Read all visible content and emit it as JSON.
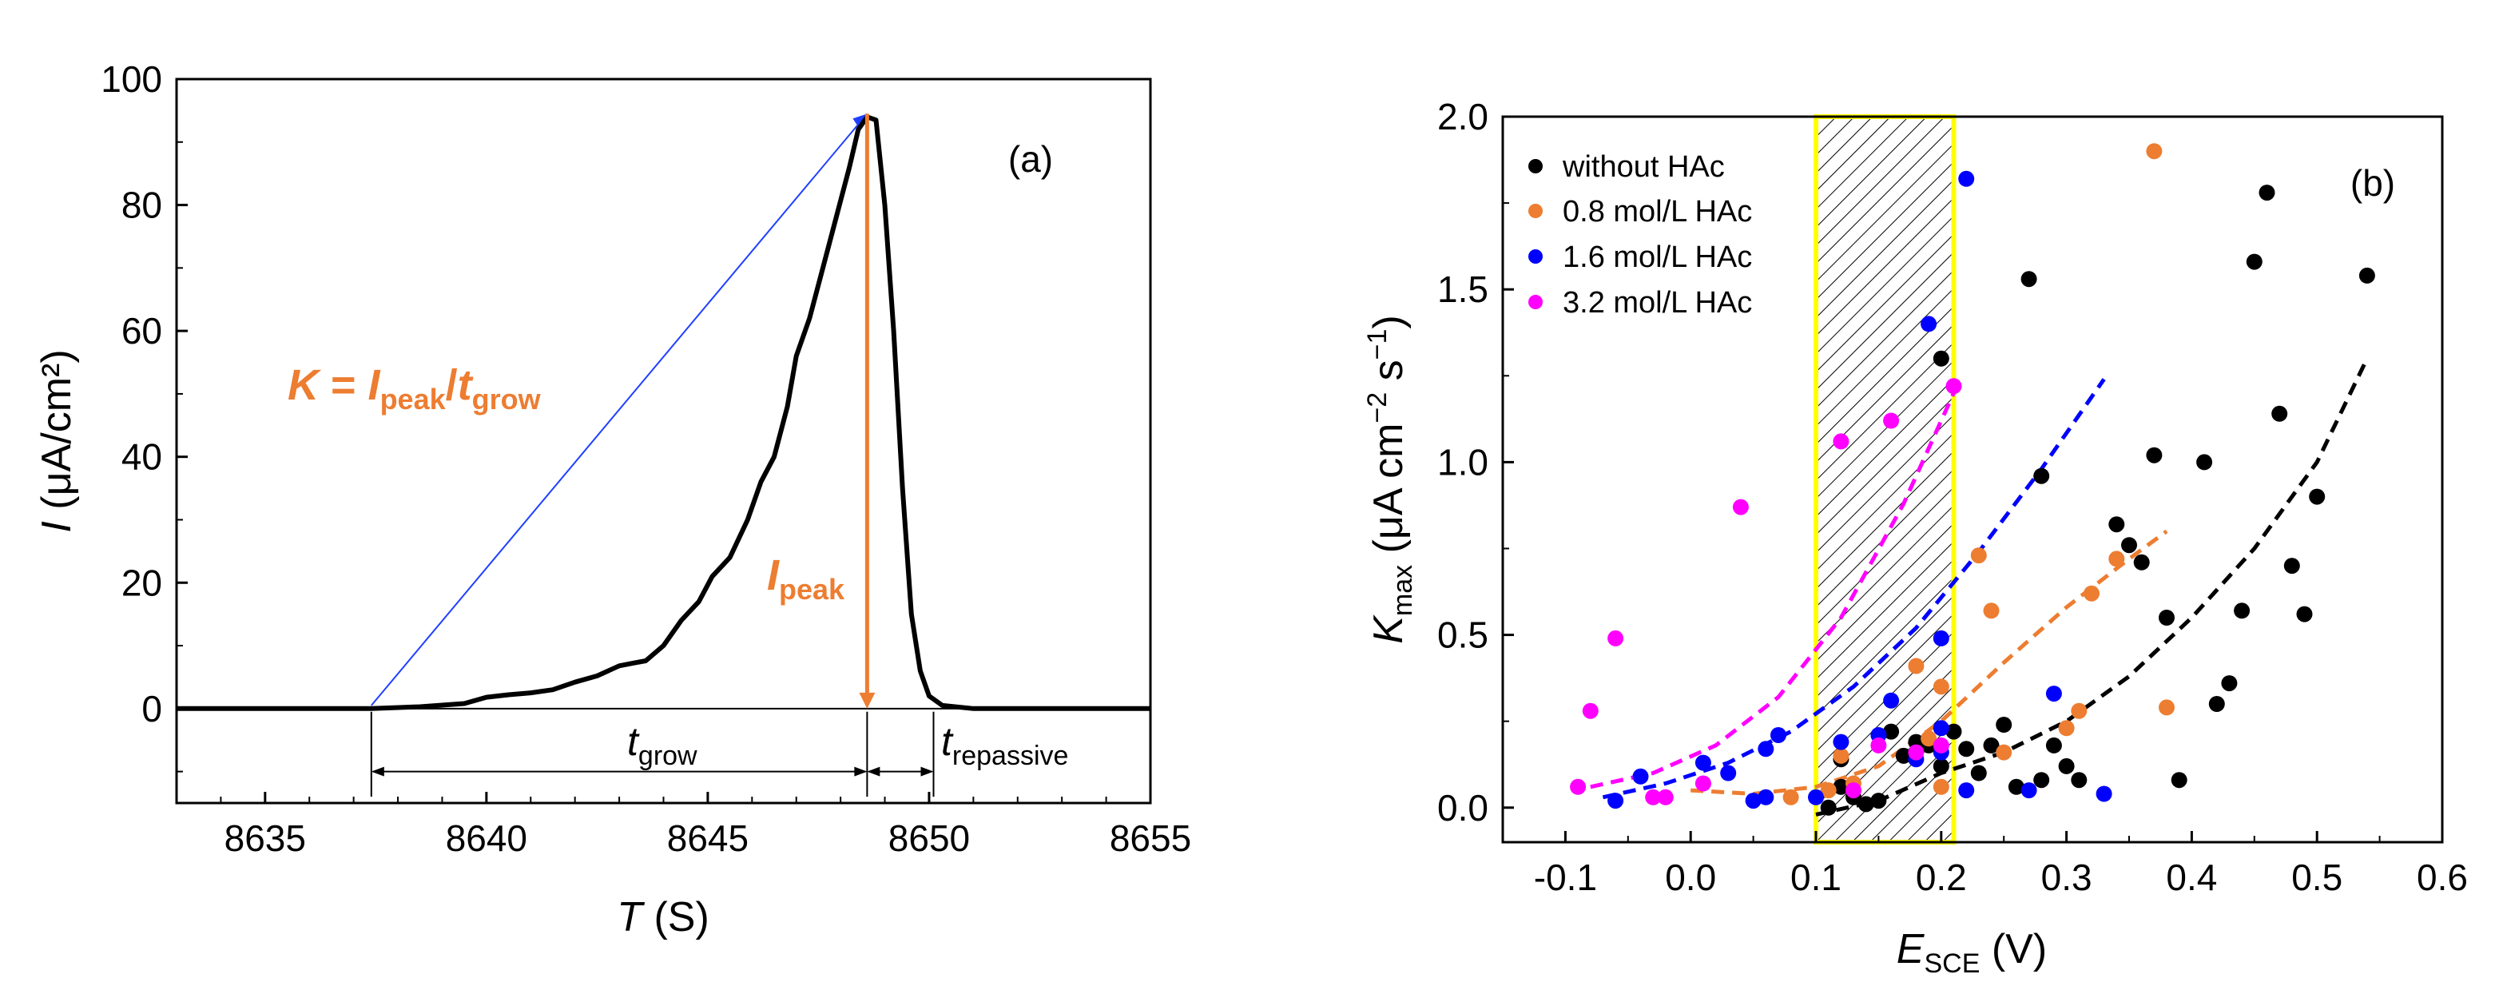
{
  "chart_data": [
    {
      "panel": "(a)",
      "type": "line",
      "xlabel": {
        "var": "T",
        "unit": "(S)"
      },
      "ylabel": {
        "var": "I",
        "unit": "(μA/cm²)"
      },
      "xlim": [
        8633,
        8655
      ],
      "ylim": [
        -15,
        100
      ],
      "xticks": [
        8635,
        8640,
        8645,
        8650,
        8655
      ],
      "yticks": [
        0,
        20,
        40,
        60,
        80,
        100
      ],
      "series": [
        {
          "name": "current transient",
          "color": "#000000",
          "x": [
            8633,
            8637.4,
            8638.5,
            8639.5,
            8640,
            8640.5,
            8641,
            8641.5,
            8642,
            8642.5,
            8643,
            8643.3,
            8643.6,
            8644,
            8644.4,
            8644.8,
            8645.1,
            8645.5,
            8645.9,
            8646.2,
            8646.5,
            8646.8,
            8647,
            8647.3,
            8647.6,
            8647.9,
            8648.2,
            8648.4,
            8648.6,
            8648.8,
            8649,
            8649.2,
            8649.4,
            8649.6,
            8649.8,
            8650,
            8650.3,
            8651,
            8655
          ],
          "y": [
            0,
            0,
            0.3,
            0.8,
            1.8,
            2.2,
            2.5,
            3,
            4.2,
            5.2,
            6.8,
            7.2,
            7.6,
            10,
            14,
            17,
            21,
            24,
            30,
            36,
            40,
            48,
            56,
            62,
            70,
            78,
            86,
            92,
            94,
            93.5,
            80,
            60,
            35,
            15,
            6,
            2,
            0.5,
            0,
            0
          ]
        }
      ],
      "annotations": {
        "panel_label": "(a)",
        "slope_text": {
          "K": "K",
          "eq": " = ",
          "I": "I",
          "I_sub": "peak",
          "slash": "/",
          "t": "t",
          "t_sub": "grow"
        },
        "slope_line": {
          "from": [
            8637.4,
            0.5
          ],
          "to": [
            8648.6,
            94.5
          ],
          "color": "#1f3fff"
        },
        "peak_arrow": {
          "x": 8648.6,
          "from": 94.5,
          "to": 0,
          "color": "#ed7d31"
        },
        "peak_text": {
          "I": "I",
          "sub": "peak"
        },
        "t_grow": {
          "label": "t",
          "sub": "grow",
          "from": 8637.4,
          "to": 8648.6
        },
        "t_repassive": {
          "label": "t",
          "sub": "repassive",
          "from": 8648.6,
          "to": 8650.1
        },
        "accent": "#ed7d31"
      }
    },
    {
      "panel": "(b)",
      "type": "scatter",
      "xlabel": {
        "var": "E",
        "sub": "SCE",
        "unit": "(V)"
      },
      "ylabel": {
        "var": "K",
        "sub": "max",
        "unit_a": "(μA cm",
        "sup1": "−2",
        "unit_b": " s",
        "sup2": "−1",
        "unit_c": ")"
      },
      "xlim": [
        -0.15,
        0.6
      ],
      "ylim": [
        -0.1,
        2.0
      ],
      "xticks": [
        "-0.1",
        "0.0",
        "0.1",
        "0.2",
        "0.3",
        "0.4",
        "0.5",
        "0.6"
      ],
      "yticks": [
        "0.0",
        "0.5",
        "1.0",
        "1.5",
        "2.0"
      ],
      "highlight_band": {
        "from": 0.1,
        "to": 0.21,
        "edge_color": "#ffff00",
        "hatch": true
      },
      "series": [
        {
          "name": "without HAc",
          "color": "#000000",
          "points": [
            [
              0.46,
              1.78
            ],
            [
              0.45,
              1.58
            ],
            [
              0.54,
              1.54
            ],
            [
              0.27,
              1.53
            ],
            [
              0.2,
              1.3
            ],
            [
              0.47,
              1.14
            ],
            [
              0.37,
              1.02
            ],
            [
              0.41,
              1.0
            ],
            [
              0.28,
              0.96
            ],
            [
              0.5,
              0.9
            ],
            [
              0.34,
              0.82
            ],
            [
              0.35,
              0.76
            ],
            [
              0.36,
              0.71
            ],
            [
              0.48,
              0.7
            ],
            [
              0.44,
              0.57
            ],
            [
              0.49,
              0.56
            ],
            [
              0.38,
              0.55
            ],
            [
              0.43,
              0.36
            ],
            [
              0.42,
              0.3
            ],
            [
              0.25,
              0.24
            ],
            [
              0.16,
              0.22
            ],
            [
              0.21,
              0.22
            ],
            [
              0.24,
              0.18
            ],
            [
              0.29,
              0.18
            ],
            [
              0.3,
              0.12
            ],
            [
              0.31,
              0.08
            ],
            [
              0.18,
              0.19
            ],
            [
              0.19,
              0.18
            ],
            [
              0.12,
              0.14
            ],
            [
              0.22,
              0.17
            ],
            [
              0.23,
              0.1
            ],
            [
              0.12,
              0.06
            ],
            [
              0.11,
              0.0
            ],
            [
              0.13,
              0.03
            ],
            [
              0.14,
              0.01
            ],
            [
              0.15,
              0.02
            ],
            [
              0.26,
              0.06
            ],
            [
              0.28,
              0.08
            ],
            [
              0.39,
              0.08
            ],
            [
              0.2,
              0.12
            ],
            [
              0.17,
              0.15
            ]
          ],
          "fit": {
            "x": [
              0.1,
              0.15,
              0.2,
              0.25,
              0.3,
              0.35,
              0.4,
              0.45,
              0.5,
              0.54
            ],
            "y": [
              -0.02,
              0.02,
              0.1,
              0.16,
              0.25,
              0.38,
              0.55,
              0.75,
              1.0,
              1.3
            ]
          }
        },
        {
          "name": "0.8  mol/L HAc",
          "color": "#ed7d31",
          "points": [
            [
              0.37,
              1.9
            ],
            [
              0.23,
              0.73
            ],
            [
              0.34,
              0.72
            ],
            [
              0.32,
              0.62
            ],
            [
              0.24,
              0.57
            ],
            [
              0.18,
              0.41
            ],
            [
              0.2,
              0.35
            ],
            [
              0.38,
              0.29
            ],
            [
              0.31,
              0.28
            ],
            [
              0.3,
              0.23
            ],
            [
              0.19,
              0.2
            ],
            [
              0.25,
              0.16
            ],
            [
              0.12,
              0.15
            ],
            [
              0.2,
              0.06
            ],
            [
              0.13,
              0.07
            ],
            [
              0.08,
              0.03
            ],
            [
              0.11,
              0.05
            ]
          ],
          "fit": {
            "x": [
              0.0,
              0.05,
              0.1,
              0.15,
              0.2,
              0.25,
              0.3,
              0.35,
              0.38
            ],
            "y": [
              0.05,
              0.04,
              0.06,
              0.12,
              0.25,
              0.42,
              0.58,
              0.72,
              0.8
            ]
          }
        },
        {
          "name": "1.6  mol/L HAc",
          "color": "#0000ff",
          "points": [
            [
              0.22,
              1.82
            ],
            [
              0.19,
              1.4
            ],
            [
              0.2,
              0.49
            ],
            [
              0.29,
              0.33
            ],
            [
              0.16,
              0.31
            ],
            [
              0.2,
              0.23
            ],
            [
              0.15,
              0.21
            ],
            [
              0.07,
              0.21
            ],
            [
              0.12,
              0.19
            ],
            [
              0.06,
              0.17
            ],
            [
              0.01,
              0.13
            ],
            [
              -0.04,
              0.09
            ],
            [
              0.03,
              0.1
            ],
            [
              0.2,
              0.16
            ],
            [
              0.18,
              0.14
            ],
            [
              -0.06,
              0.02
            ],
            [
              0.06,
              0.03
            ],
            [
              0.1,
              0.03
            ],
            [
              0.22,
              0.05
            ],
            [
              0.27,
              0.05
            ],
            [
              0.33,
              0.04
            ],
            [
              0.05,
              0.02
            ]
          ],
          "fit": {
            "x": [
              -0.07,
              -0.02,
              0.03,
              0.08,
              0.13,
              0.18,
              0.23,
              0.28,
              0.33
            ],
            "y": [
              0.03,
              0.07,
              0.13,
              0.22,
              0.35,
              0.52,
              0.74,
              0.98,
              1.24
            ]
          }
        },
        {
          "name": "3.2  mol/L HAc",
          "color": "#ff00ff",
          "points": [
            [
              0.21,
              1.22
            ],
            [
              0.16,
              1.12
            ],
            [
              0.12,
              1.06
            ],
            [
              0.04,
              0.87
            ],
            [
              -0.06,
              0.49
            ],
            [
              -0.08,
              0.28
            ],
            [
              0.15,
              0.18
            ],
            [
              0.2,
              0.18
            ],
            [
              0.18,
              0.16
            ],
            [
              -0.09,
              0.06
            ],
            [
              -0.03,
              0.03
            ],
            [
              -0.02,
              0.03
            ],
            [
              0.01,
              0.07
            ],
            [
              0.13,
              0.05
            ]
          ],
          "fit": {
            "x": [
              -0.08,
              -0.03,
              0.02,
              0.07,
              0.12,
              0.17,
              0.21
            ],
            "y": [
              0.06,
              0.1,
              0.18,
              0.32,
              0.55,
              0.88,
              1.2
            ]
          }
        }
      ],
      "annotations": {
        "panel_label": "(b)"
      }
    }
  ]
}
